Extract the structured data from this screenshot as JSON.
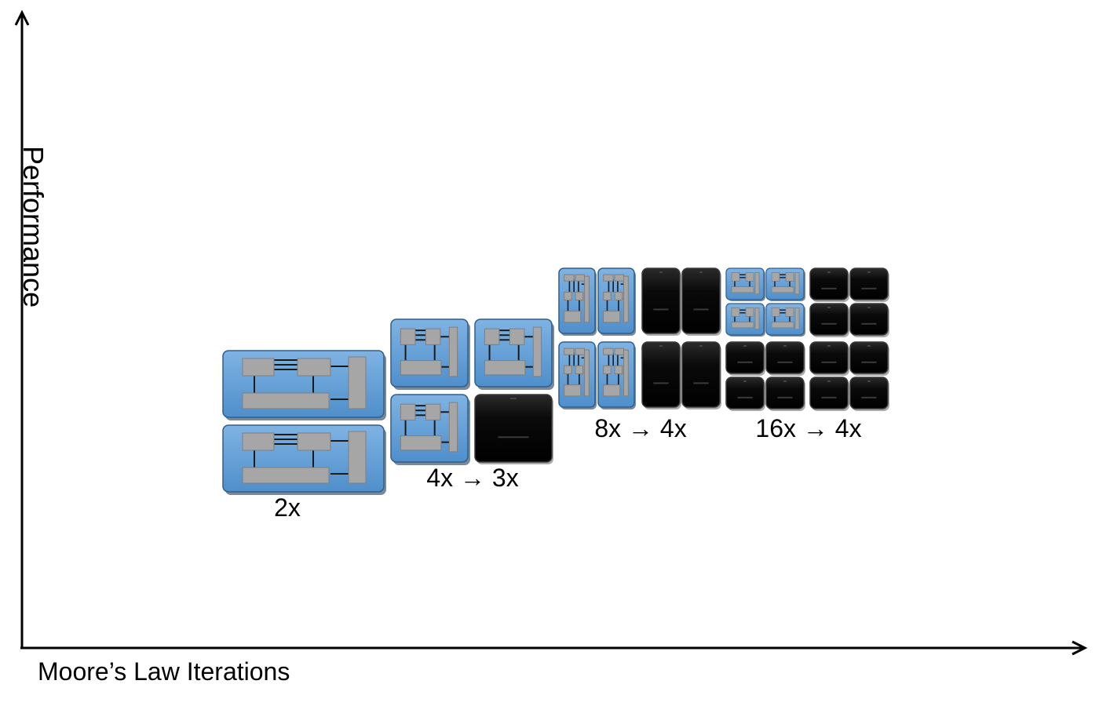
{
  "axes": {
    "x_label": "Moore’s Law Iterations",
    "y_label": "Performance"
  },
  "colors": {
    "active_core": "#5b9bd5",
    "dark_core": "#0d0d0d",
    "block": "#a6a6a6",
    "axis": "#000000"
  },
  "groups": [
    {
      "label": "2x"
    },
    {
      "label": "4x → 3x"
    },
    {
      "label": "8x → 4x"
    },
    {
      "label": "16x → 4x"
    }
  ]
}
